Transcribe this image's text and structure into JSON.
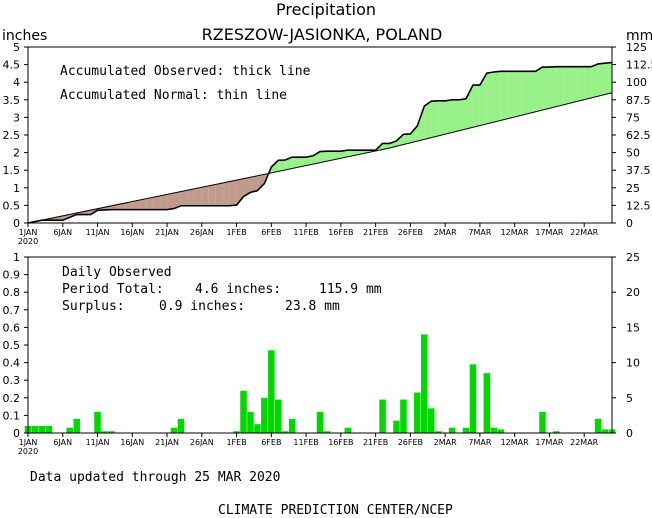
{
  "header": {
    "title": "Precipitation",
    "location": "RZESZOW-JASIONKA, POLAND",
    "left_unit": "inches",
    "right_unit": "mm"
  },
  "top_panel": {
    "legend_observed": "Accumulated Observed: thick line",
    "legend_normal": "Accumulated Normal: thin line",
    "colors": {
      "deficit": "#c09a8c",
      "surplus": "#98f088",
      "line": "#000000"
    }
  },
  "bottom_panel": {
    "label": "Daily Observed",
    "period_label": "Period Total:",
    "period_inches": "4.6 inches:",
    "period_mm": "115.9 mm",
    "surplus_label": "Surplus:",
    "surplus_inches": "0.9 inches:",
    "surplus_mm": "23.8 mm",
    "bar_color": "#00d800"
  },
  "footer": {
    "updated": "Data updated through 25 MAR 2020",
    "credit": "CLIMATE PREDICTION CENTER/NCEP"
  },
  "chart_data": [
    {
      "type": "area",
      "x_ticks": [
        "1JAN",
        "6JAN",
        "11JAN",
        "16JAN",
        "21JAN",
        "26JAN",
        "1FEB",
        "6FEB",
        "11FEB",
        "16FEB",
        "21FEB",
        "26FEB",
        "2MAR",
        "7MAR",
        "12MAR",
        "17MAR",
        "22MAR"
      ],
      "x_year_label": "2020",
      "ylabel_left": "inches",
      "ylabel_right": "mm",
      "ylim_left": [
        0,
        5
      ],
      "ylim_right": [
        0,
        125
      ],
      "yticks_left": [
        "0",
        "0.5",
        "1",
        "1.5",
        "2",
        "2.5",
        "3",
        "3.5",
        "4",
        "4.5",
        "5"
      ],
      "yticks_right": [
        "0",
        "12.5",
        "25",
        "37.5",
        "50",
        "62.5",
        "75",
        "87.5",
        "100",
        "112.5",
        "125"
      ],
      "day_range": [
        1,
        85
      ],
      "series": [
        {
          "name": "Accumulated Observed",
          "points": [
            [
              1,
              0
            ],
            [
              2,
              0.04
            ],
            [
              3,
              0.08
            ],
            [
              4,
              0.08
            ],
            [
              5,
              0.08
            ],
            [
              6,
              0.08
            ],
            [
              7,
              0.16
            ],
            [
              8,
              0.24
            ],
            [
              9,
              0.24
            ],
            [
              10,
              0.24
            ],
            [
              11,
              0.36
            ],
            [
              12,
              0.37
            ],
            [
              13,
              0.38
            ],
            [
              14,
              0.38
            ],
            [
              15,
              0.38
            ],
            [
              16,
              0.38
            ],
            [
              17,
              0.38
            ],
            [
              18,
              0.38
            ],
            [
              19,
              0.38
            ],
            [
              20,
              0.38
            ],
            [
              21,
              0.38
            ],
            [
              22,
              0.41
            ],
            [
              23,
              0.49
            ],
            [
              24,
              0.49
            ],
            [
              25,
              0.49
            ],
            [
              26,
              0.49
            ],
            [
              27,
              0.49
            ],
            [
              28,
              0.49
            ],
            [
              29,
              0.49
            ],
            [
              30,
              0.49
            ],
            [
              31,
              0.51
            ],
            [
              32,
              0.75
            ],
            [
              33,
              0.87
            ],
            [
              34,
              0.92
            ],
            [
              35,
              1.12
            ],
            [
              36,
              1.59
            ],
            [
              37,
              1.78
            ],
            [
              38,
              1.79
            ],
            [
              39,
              1.87
            ],
            [
              40,
              1.87
            ],
            [
              41,
              1.87
            ],
            [
              42,
              1.91
            ],
            [
              43,
              2.03
            ],
            [
              44,
              2.04
            ],
            [
              45,
              2.04
            ],
            [
              46,
              2.04
            ],
            [
              47,
              2.07
            ],
            [
              48,
              2.07
            ],
            [
              49,
              2.07
            ],
            [
              50,
              2.07
            ],
            [
              51,
              2.07
            ],
            [
              52,
              2.26
            ],
            [
              53,
              2.26
            ],
            [
              54,
              2.33
            ],
            [
              55,
              2.52
            ],
            [
              56,
              2.53
            ],
            [
              57,
              2.76
            ],
            [
              58,
              3.32
            ],
            [
              59,
              3.46
            ],
            [
              60,
              3.47
            ],
            [
              61,
              3.47
            ],
            [
              62,
              3.5
            ],
            [
              63,
              3.5
            ],
            [
              64,
              3.53
            ],
            [
              65,
              3.92
            ],
            [
              66,
              3.92
            ],
            [
              67,
              4.26
            ],
            [
              68,
              4.29
            ],
            [
              69,
              4.31
            ],
            [
              70,
              4.31
            ],
            [
              71,
              4.31
            ],
            [
              72,
              4.31
            ],
            [
              73,
              4.31
            ],
            [
              74,
              4.31
            ],
            [
              75,
              4.43
            ],
            [
              76,
              4.43
            ],
            [
              77,
              4.44
            ],
            [
              78,
              4.44
            ],
            [
              79,
              4.44
            ],
            [
              80,
              4.44
            ],
            [
              81,
              4.44
            ],
            [
              82,
              4.44
            ],
            [
              83,
              4.52
            ],
            [
              84,
              4.54
            ],
            [
              85,
              4.56
            ]
          ]
        },
        {
          "name": "Accumulated Normal",
          "points": [
            [
              1,
              0
            ],
            [
              33,
              1.3
            ],
            [
              53,
              2.13
            ],
            [
              85,
              3.7
            ]
          ]
        }
      ]
    },
    {
      "type": "bar",
      "ylabel_left": "inches",
      "ylabel_right": "mm",
      "ylim_left": [
        0,
        1
      ],
      "ylim_right": [
        0,
        25
      ],
      "yticks_left": [
        "0",
        "0.1",
        "0.2",
        "0.3",
        "0.4",
        "0.5",
        "0.6",
        "0.7",
        "0.8",
        "0.9",
        "1"
      ],
      "yticks_right": [
        "0",
        "5",
        "10",
        "15",
        "20",
        "25"
      ],
      "series": [
        {
          "name": "Daily Observed",
          "points": [
            [
              1,
              0.04
            ],
            [
              2,
              0.04
            ],
            [
              3,
              0.04
            ],
            [
              4,
              0.04
            ],
            [
              7,
              0.03
            ],
            [
              8,
              0.08
            ],
            [
              11,
              0.12
            ],
            [
              12,
              0.01
            ],
            [
              13,
              0.01
            ],
            [
              22,
              0.03
            ],
            [
              23,
              0.08
            ],
            [
              31,
              0.01
            ],
            [
              32,
              0.24
            ],
            [
              33,
              0.12
            ],
            [
              34,
              0.05
            ],
            [
              35,
              0.2
            ],
            [
              36,
              0.47
            ],
            [
              37,
              0.19
            ],
            [
              38,
              0.01
            ],
            [
              39,
              0.08
            ],
            [
              43,
              0.12
            ],
            [
              44,
              0.01
            ],
            [
              47,
              0.03
            ],
            [
              52,
              0.19
            ],
            [
              54,
              0.07
            ],
            [
              55,
              0.19
            ],
            [
              57,
              0.23
            ],
            [
              58,
              0.56
            ],
            [
              59,
              0.14
            ],
            [
              60,
              0.01
            ],
            [
              62,
              0.03
            ],
            [
              64,
              0.03
            ],
            [
              65,
              0.39
            ],
            [
              67,
              0.34
            ],
            [
              68,
              0.03
            ],
            [
              69,
              0.02
            ],
            [
              75,
              0.12
            ],
            [
              77,
              0.01
            ],
            [
              83,
              0.08
            ],
            [
              84,
              0.02
            ],
            [
              85,
              0.02
            ]
          ]
        }
      ]
    }
  ]
}
